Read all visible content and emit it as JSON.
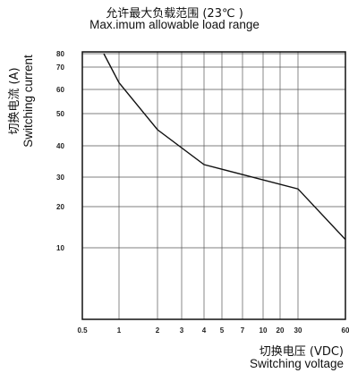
{
  "chart_data": {
    "type": "line",
    "title_cn": "允许最大负载范围 (23℃ )",
    "title": "Max.imum allowable load range",
    "ylabel_cn": "切换电流 (A)",
    "ylabel": "Switching current",
    "xlabel_cn": "切换电压 (VDC)",
    "xlabel": "Switching voltage",
    "x_ticks": [
      "0.5",
      "1",
      "2",
      "3",
      "4",
      "5",
      "7",
      "10",
      "20",
      "30",
      "60"
    ],
    "y_ticks": [
      "80",
      "70",
      "60",
      "50",
      "40",
      "30",
      "20",
      "10"
    ],
    "grid": true,
    "series": [
      {
        "x": [
          "0.75",
          "1",
          "2",
          "4",
          "30",
          "60"
        ],
        "y": [
          80,
          63,
          45,
          34,
          26,
          12
        ]
      }
    ]
  }
}
